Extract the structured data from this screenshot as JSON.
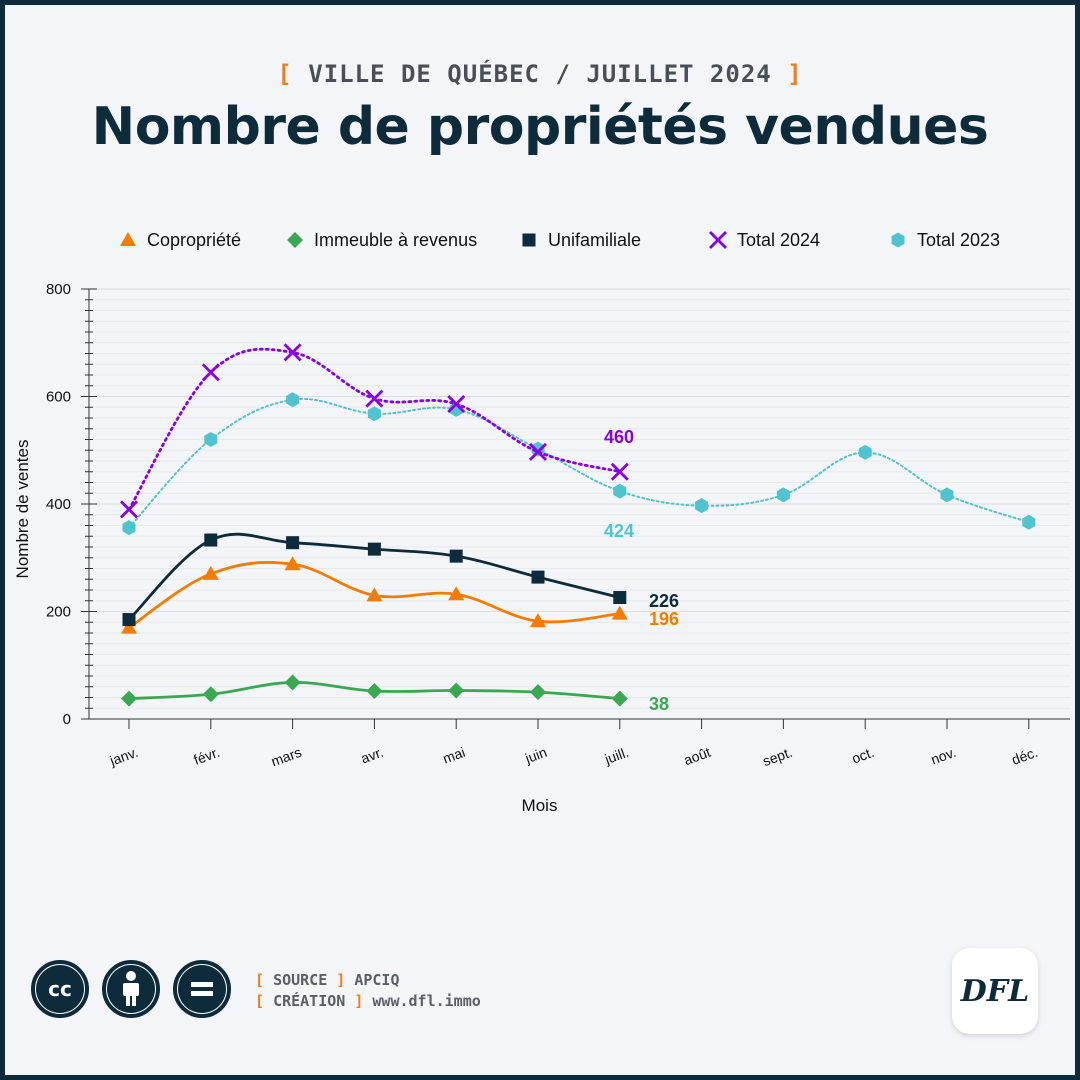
{
  "header": {
    "kicker": "VILLE DE QUÉBEC / JUILLET 2024",
    "title": "Nombre de propriétés vendues"
  },
  "chart_data": {
    "type": "line",
    "categories": [
      "janv.",
      "févr.",
      "mars",
      "avr.",
      "mai",
      "juin",
      "juill.",
      "août",
      "sept.",
      "oct.",
      "nov.",
      "déc."
    ],
    "xlabel": "Mois",
    "ylabel": "Nombre de ventes",
    "ylim": [
      0,
      800
    ],
    "yticks": [
      0,
      200,
      400,
      600,
      800
    ],
    "grid": true,
    "legend_position": "top",
    "series": [
      {
        "name": "Copropriété",
        "color": "#f57c00",
        "marker": "triangle",
        "line": "solid",
        "values": [
          170,
          270,
          288,
          230,
          232,
          182,
          196,
          null,
          null,
          null,
          null,
          null
        ],
        "end_label": "196"
      },
      {
        "name": "Immeuble à revenus",
        "color": "#3aa850",
        "marker": "diamond",
        "line": "solid",
        "values": [
          38,
          46,
          68,
          52,
          53,
          50,
          38,
          null,
          null,
          null,
          null,
          null
        ],
        "end_label": "38"
      },
      {
        "name": "Unifamiliale",
        "color": "#0d2b3a",
        "marker": "square",
        "line": "solid",
        "values": [
          185,
          333,
          328,
          316,
          303,
          264,
          226,
          null,
          null,
          null,
          null,
          null
        ],
        "end_label": "226"
      },
      {
        "name": "Total 2024",
        "color": "#8a00e6",
        "marker": "x",
        "line": "dotted",
        "values": [
          390,
          645,
          682,
          596,
          586,
          497,
          460,
          null,
          null,
          null,
          null,
          null
        ],
        "end_label": "460"
      },
      {
        "name": "Total 2023",
        "color": "#4fc3cf",
        "marker": "hexagon",
        "line": "dotted",
        "values": [
          356,
          520,
          594,
          568,
          576,
          502,
          424,
          397,
          417,
          496,
          417,
          366
        ],
        "end_label": "424"
      }
    ]
  },
  "footer": {
    "source_label": "SOURCE",
    "source_value": "APCIQ",
    "creation_label": "CRÉATION",
    "creation_value": "www.dfl.immo",
    "license_icons": [
      "cc-icon",
      "attribution-icon",
      "no-derivatives-icon"
    ],
    "logo_text": "DFL"
  }
}
